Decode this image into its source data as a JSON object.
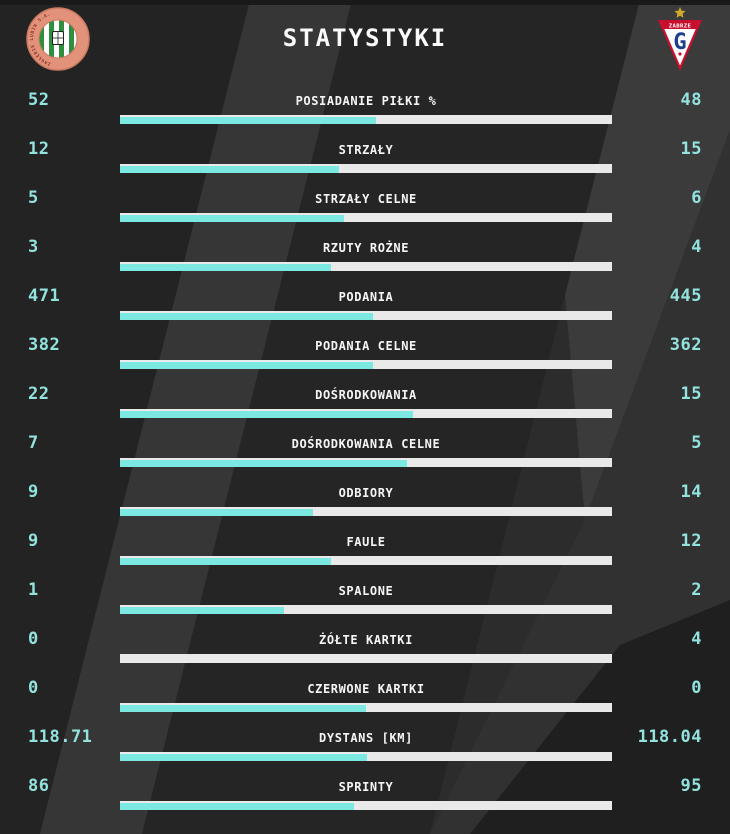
{
  "header": {
    "title": "STATYSTYKI",
    "home_team": {
      "name": "Zagłębie Lubin",
      "badge_text": "ZAGŁĘBIE LUBIN S.A."
    },
    "away_team": {
      "name": "Górnik Zabrze",
      "badge_city": "ZABRZE",
      "badge_letter": "G"
    }
  },
  "colors": {
    "accent": "#7be9e1",
    "value_text": "#92e2de",
    "label_text": "#f5f5f5",
    "bar_track": "#e9e9e9",
    "home_badge_orange": "#e2917a",
    "home_badge_green": "#2f8f3e",
    "away_badge_red": "#c8102e",
    "away_badge_blue": "#1d3e8c",
    "away_badge_gold": "#cfa72c"
  },
  "stats": {
    "rows": [
      {
        "label": "POSIADANIE PIŁKI %",
        "home": "52",
        "away": "48"
      },
      {
        "label": "STRZAŁY",
        "home": "12",
        "away": "15"
      },
      {
        "label": "STRZAŁY CELNE",
        "home": "5",
        "away": "6"
      },
      {
        "label": "RZUTY ROŻNE",
        "home": "3",
        "away": "4"
      },
      {
        "label": "PODANIA",
        "home": "471",
        "away": "445"
      },
      {
        "label": "PODANIA CELNE",
        "home": "382",
        "away": "362"
      },
      {
        "label": "DOŚRODKOWANIA",
        "home": "22",
        "away": "15"
      },
      {
        "label": "DOŚRODKOWANIA CELNE",
        "home": "7",
        "away": "5"
      },
      {
        "label": "ODBIORY",
        "home": "9",
        "away": "14"
      },
      {
        "label": "FAULE",
        "home": "9",
        "away": "12"
      },
      {
        "label": "SPALONE",
        "home": "1",
        "away": "2"
      },
      {
        "label": "ŻÓŁTE KARTKI",
        "home": "0",
        "away": "4"
      },
      {
        "label": "CZERWONE KARTKI",
        "home": "0",
        "away": "0"
      },
      {
        "label": "DYSTANS [KM]",
        "home": "118.71",
        "away": "118.04"
      },
      {
        "label": "SPRINTY",
        "home": "86",
        "away": "95"
      }
    ]
  },
  "chart_data": {
    "type": "bar",
    "title": "STATYSTYKI",
    "orientation": "horizontal-paired-comparison",
    "categories": [
      "POSIADANIE PIŁKI %",
      "STRZAŁY",
      "STRZAŁY CELNE",
      "RZUTY ROŻNE",
      "PODANIA",
      "PODANIA CELNE",
      "DOŚRODKOWANIA",
      "DOŚRODKOWANIA CELNE",
      "ODBIORY",
      "FAULE",
      "SPALONE",
      "ŻÓŁTE KARTKI",
      "CZERWONE KARTKI",
      "DYSTANS [KM]",
      "SPRINTY"
    ],
    "series": [
      {
        "name": "Zagłębie Lubin",
        "side": "left",
        "color": "#7be9e1",
        "values": [
          52,
          12,
          5,
          3,
          471,
          382,
          22,
          7,
          9,
          9,
          1,
          0,
          0,
          118.71,
          86
        ]
      },
      {
        "name": "Górnik Zabrze",
        "side": "right",
        "color": "#e9e9e9",
        "values": [
          48,
          15,
          6,
          4,
          445,
          362,
          15,
          5,
          14,
          12,
          2,
          4,
          0,
          118.04,
          95
        ]
      }
    ],
    "note": "Each row bar is a white track; cyan fill width = home value / (home + away); 50% when both are 0"
  }
}
